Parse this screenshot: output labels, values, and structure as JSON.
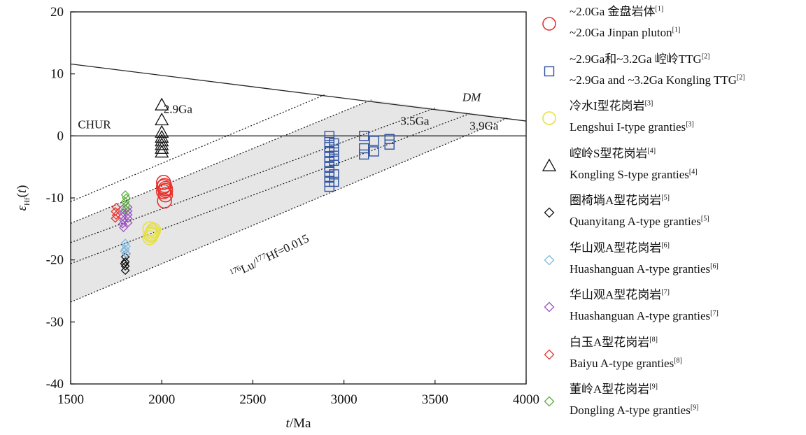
{
  "chart_data": {
    "type": "scatter",
    "xlabel": "t/Ma",
    "ylabel": "εHf(t)",
    "xlim": [
      1500,
      4000
    ],
    "ylim": [
      -40,
      20
    ],
    "xticks": [
      1500,
      2000,
      2500,
      3000,
      3500,
      4000
    ],
    "yticks": [
      -40,
      -30,
      -20,
      -10,
      0,
      10,
      20
    ],
    "grid": false,
    "legend_position": "right",
    "reference_lines": [
      {
        "name": "CHUR",
        "points": [
          [
            1500,
            0
          ],
          [
            4000,
            0
          ]
        ],
        "style": "solid"
      },
      {
        "name": "DM",
        "points": [
          [
            1500,
            11.6
          ],
          [
            4000,
            2.4
          ]
        ],
        "style": "solid"
      },
      {
        "name": "2.9Ga",
        "points": [
          [
            1500,
            -10.6
          ],
          [
            2900,
            6.7
          ]
        ],
        "style": "dotted"
      },
      {
        "name": "",
        "points": [
          [
            1500,
            -14.1
          ],
          [
            3150,
            5.8
          ]
        ],
        "style": "dotted"
      },
      {
        "name": "3.5Ga",
        "points": [
          [
            1500,
            -17.2
          ],
          [
            3500,
            4.5
          ]
        ],
        "style": "dotted"
      },
      {
        "name": "",
        "points": [
          [
            1500,
            -20.6
          ],
          [
            3700,
            3.7
          ]
        ],
        "style": "dotted"
      },
      {
        "name": "3.9Ga",
        "points": [
          [
            1500,
            -26.8
          ],
          [
            3900,
            2.9
          ]
        ],
        "style": "dotted"
      }
    ],
    "shaded_band": {
      "upper": [
        [
          1500,
          -14.1
        ],
        [
          3150,
          5.8
        ],
        [
          3900,
          2.9
        ]
      ],
      "lower": [
        [
          1500,
          -26.8
        ],
        [
          3900,
          2.9
        ]
      ],
      "color": "#e6e6e6"
    },
    "annotations": [
      {
        "text": "CHUR",
        "x": 1540,
        "y": 1.2
      },
      {
        "text": "DM",
        "x": 3650,
        "y": 5.6
      },
      {
        "text": "2.9Ga",
        "x": 2010,
        "y": 3.7
      },
      {
        "text": "3.5Ga",
        "x": 3310,
        "y": 1.8
      },
      {
        "text": "3.9Ga",
        "x": 3690,
        "y": 1.0
      }
    ],
    "slope_label": {
      "pre1": "176",
      "mid1": "Lu/",
      "pre2": "177",
      "mid2": "Hf=0.015",
      "x": 2390,
      "y": -23,
      "angle": -26
    },
    "series": [
      {
        "marker": "circle",
        "color": "#e8322d",
        "size": 20,
        "points": [
          [
            2010,
            -7.5
          ],
          [
            2015,
            -8.0
          ],
          [
            2020,
            -8.5
          ],
          [
            2010,
            -9.0
          ],
          [
            2020,
            -9.5
          ],
          [
            2015,
            -10.5
          ],
          [
            2020,
            -8.8
          ],
          [
            2010,
            -8.2
          ]
        ]
      },
      {
        "marker": "square",
        "color": "#2e52a3",
        "size": 13,
        "points": [
          [
            2920,
            0.0
          ],
          [
            2920,
            -1.0
          ],
          [
            2920,
            -1.8
          ],
          [
            2920,
            -2.6
          ],
          [
            2920,
            -3.4
          ],
          [
            2920,
            -4.2
          ],
          [
            2920,
            -5.0
          ],
          [
            2920,
            -5.8
          ],
          [
            2920,
            -6.6
          ],
          [
            2920,
            -7.4
          ],
          [
            2920,
            -8.2
          ],
          [
            2945,
            -1.2
          ],
          [
            2945,
            -2.2
          ],
          [
            2945,
            -3.2
          ],
          [
            2945,
            -4.0
          ],
          [
            2945,
            -6.2
          ],
          [
            2945,
            -7.4
          ],
          [
            3110,
            0.0
          ],
          [
            3110,
            -2.0
          ],
          [
            3110,
            -3.0
          ],
          [
            3165,
            -0.8
          ],
          [
            3165,
            -2.5
          ],
          [
            3250,
            -0.5
          ],
          [
            3250,
            -1.4
          ]
        ]
      },
      {
        "marker": "circle",
        "color": "#e6e040",
        "size": 20,
        "points": [
          [
            1935,
            -15.0
          ],
          [
            1950,
            -15.5
          ],
          [
            1940,
            -16.0
          ],
          [
            1955,
            -15.2
          ],
          [
            1945,
            -15.8
          ],
          [
            1935,
            -16.4
          ]
        ]
      },
      {
        "marker": "triangle",
        "color": "#111111",
        "size": 18,
        "points": [
          [
            2000,
            5.0
          ],
          [
            2000,
            2.6
          ],
          [
            2000,
            0.6
          ],
          [
            2000,
            -0.2
          ],
          [
            2000,
            -0.8
          ],
          [
            2000,
            -1.4
          ],
          [
            2000,
            -2.0
          ],
          [
            2000,
            -2.6
          ]
        ]
      },
      {
        "marker": "diamond",
        "color": "#111111",
        "size": 11,
        "points": [
          [
            1800,
            -19.5
          ],
          [
            1800,
            -20.3
          ],
          [
            1800,
            -21.0
          ],
          [
            1800,
            -21.7
          ],
          [
            1805,
            -19.0
          ],
          [
            1795,
            -20.6
          ]
        ]
      },
      {
        "marker": "diamond",
        "color": "#7fb8e0",
        "size": 11,
        "points": [
          [
            1800,
            -17.3
          ],
          [
            1805,
            -17.8
          ],
          [
            1800,
            -18.3
          ],
          [
            1795,
            -18.6
          ],
          [
            1805,
            -19.0
          ]
        ]
      },
      {
        "marker": "diamond",
        "color": "#9a4fc0",
        "size": 11,
        "points": [
          [
            1785,
            -11.8
          ],
          [
            1790,
            -12.4
          ],
          [
            1785,
            -13.0
          ],
          [
            1790,
            -13.6
          ],
          [
            1785,
            -14.2
          ],
          [
            1790,
            -14.8
          ],
          [
            1815,
            -11.5
          ],
          [
            1815,
            -12.1
          ],
          [
            1815,
            -12.7
          ],
          [
            1815,
            -13.3
          ],
          [
            1815,
            -14.0
          ]
        ]
      },
      {
        "marker": "diamond",
        "color": "#e8322d",
        "size": 11,
        "points": [
          [
            1750,
            -11.5
          ],
          [
            1745,
            -12.2
          ],
          [
            1750,
            -12.8
          ],
          [
            1745,
            -13.3
          ]
        ]
      },
      {
        "marker": "diamond",
        "color": "#5aad3a",
        "size": 11,
        "points": [
          [
            1800,
            -9.5
          ],
          [
            1805,
            -10.0
          ],
          [
            1800,
            -10.6
          ],
          [
            1805,
            -11.2
          ],
          [
            1800,
            -11.8
          ]
        ]
      }
    ],
    "legend": [
      {
        "marker": "circle",
        "color": "#e8322d",
        "line1": "~2.0Ga 金盘岩体",
        "ref1": "[1]",
        "line2": "~2.0Ga Jinpan pluton",
        "ref2": "[1]"
      },
      {
        "marker": "square",
        "color": "#2e52a3",
        "line1": "~2.9Ga和~3.2Ga 崆岭TTG",
        "ref1": "[2]",
        "line2": "~2.9Ga and ~3.2Ga Kongling TTG",
        "ref2": "[2]"
      },
      {
        "marker": "circle",
        "color": "#e6e040",
        "line1": "冷水I型花岗岩",
        "ref1": "[3]",
        "line2": "Lengshui I-type granties",
        "ref2": "[3]"
      },
      {
        "marker": "triangle",
        "color": "#111111",
        "line1": "崆岭S型花岗岩",
        "ref1": "[4]",
        "line2": "Kongling S-type granties",
        "ref2": "[4]"
      },
      {
        "marker": "diamond",
        "color": "#111111",
        "line1": "圈椅埫A型花岗岩",
        "ref1": "[5]",
        "line2": "Quanyitang A-type granties",
        "ref2": "[5]"
      },
      {
        "marker": "diamond",
        "color": "#7fb8e0",
        "line1": "华山观A型花岗岩",
        "ref1": "[6]",
        "line2": "Huashanguan A-type granties",
        "ref2": "[6]"
      },
      {
        "marker": "diamond",
        "color": "#9a4fc0",
        "line1": "华山观A型花岗岩",
        "ref1": "[7]",
        "line2": "Huashanguan A-type granties",
        "ref2": "[7]"
      },
      {
        "marker": "diamond",
        "color": "#e8322d",
        "line1": "白玉A型花岗岩",
        "ref1": "[8]",
        "line2": "Baiyu A-type granties",
        "ref2": "[8]"
      },
      {
        "marker": "diamond",
        "color": "#5aad3a",
        "line1": "董岭A型花岗岩",
        "ref1": "[9]",
        "line2": "Dongling A-type granties",
        "ref2": "[9]"
      }
    ]
  }
}
